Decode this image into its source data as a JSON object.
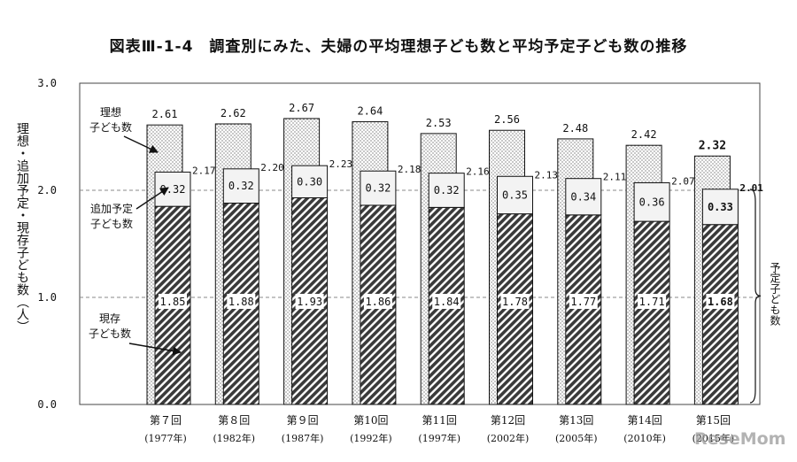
{
  "chart_data": {
    "type": "bar",
    "title": "図表Ⅲ-1-4　調査別にみた、夫婦の平均理想子ども数と平均予定子ども数の推移",
    "ylabel": "理想・追加予定・現存子ども数（人）",
    "ylim": [
      0,
      3
    ],
    "yticks": [
      "0.0",
      "1.0",
      "2.0",
      "3.0"
    ],
    "grid": true,
    "categories": [
      {
        "round": "第７回",
        "year": "(1977年)"
      },
      {
        "round": "第８回",
        "year": "(1982年)"
      },
      {
        "round": "第９回",
        "year": "(1987年)"
      },
      {
        "round": "第10回",
        "year": "(1992年)"
      },
      {
        "round": "第11回",
        "year": "(1997年)"
      },
      {
        "round": "第12回",
        "year": "(2002年)"
      },
      {
        "round": "第13回",
        "year": "(2005年)"
      },
      {
        "round": "第14回",
        "year": "(2010年)"
      },
      {
        "round": "第15回",
        "year": "(2015年)"
      }
    ],
    "ideal": [
      2.61,
      2.62,
      2.67,
      2.64,
      2.53,
      2.56,
      2.48,
      2.42,
      2.32
    ],
    "ideal_labels": [
      "2.61",
      "2.62",
      "2.67",
      "2.64",
      "2.53",
      "2.56",
      "2.48",
      "2.42",
      "2.32"
    ],
    "planned_total": [
      2.17,
      2.2,
      2.23,
      2.18,
      2.16,
      2.13,
      2.11,
      2.07,
      2.01
    ],
    "planned_total_labels": [
      "2.17",
      "2.20",
      "2.23",
      "2.18",
      "2.16",
      "2.13",
      "2.11",
      "2.07",
      "2.01"
    ],
    "additional": [
      0.32,
      0.32,
      0.3,
      0.32,
      0.32,
      0.35,
      0.34,
      0.36,
      0.33
    ],
    "additional_labels": [
      "0.32",
      "0.32",
      "0.30",
      "0.32",
      "0.32",
      "0.35",
      "0.34",
      "0.36",
      "0.33"
    ],
    "existing": [
      1.85,
      1.88,
      1.93,
      1.86,
      1.84,
      1.78,
      1.77,
      1.71,
      1.68
    ],
    "existing_labels": [
      "1.85",
      "1.88",
      "1.93",
      "1.86",
      "1.84",
      "1.78",
      "1.77",
      "1.71",
      "1.68"
    ],
    "bold_last": true,
    "annotations": {
      "ideal": [
        "理想",
        "子ども数"
      ],
      "additional": [
        "追加予定",
        "子ども数"
      ],
      "existing": [
        "現存",
        "子ども数"
      ],
      "planned": "予定子ども数"
    }
  },
  "watermark": "ReseMom"
}
